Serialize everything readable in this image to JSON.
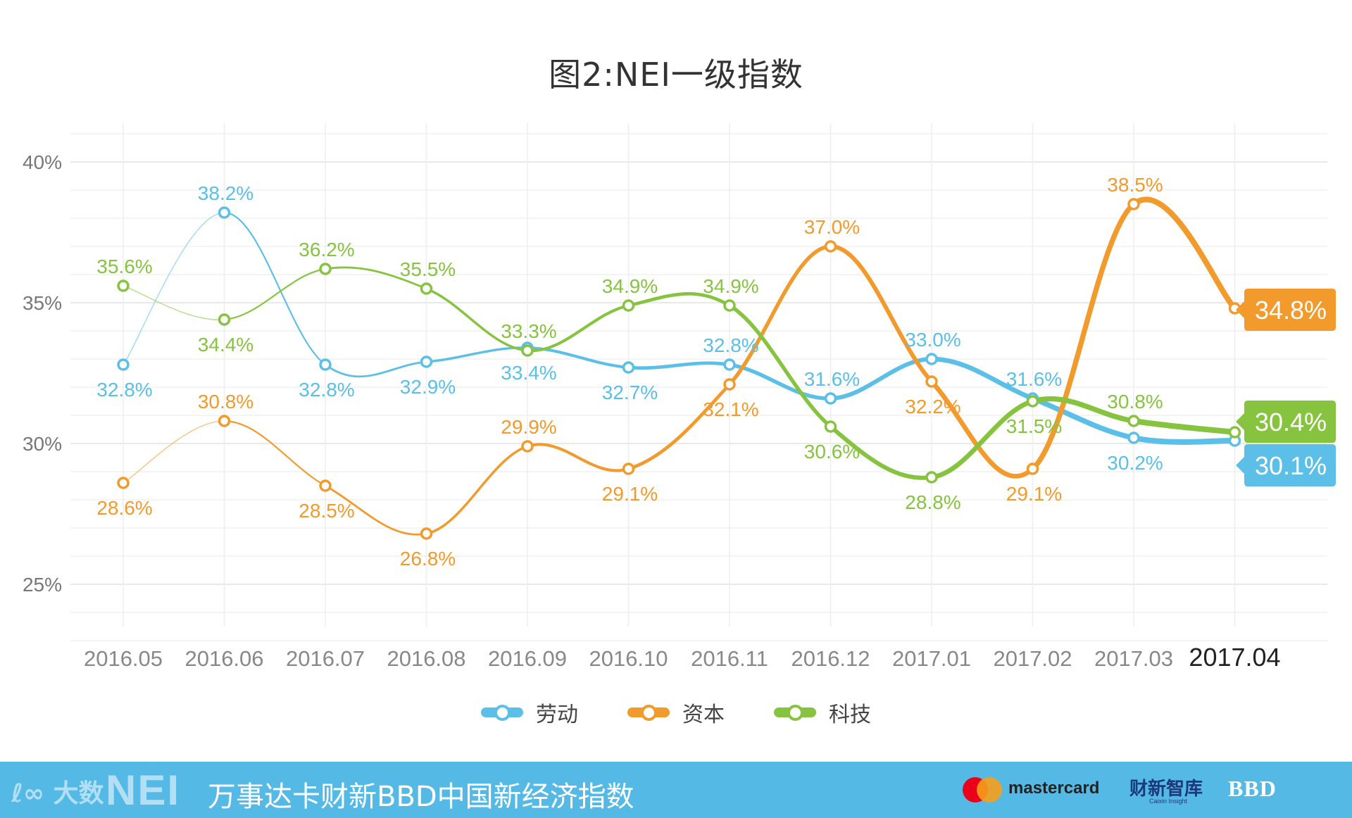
{
  "chart_data": {
    "type": "line",
    "title": "图2:NEI一级指数",
    "categories": [
      "2016.05",
      "2016.06",
      "2016.07",
      "2016.08",
      "2016.09",
      "2016.10",
      "2016.11",
      "2016.12",
      "2017.01",
      "2017.02",
      "2017.03",
      "2017.04"
    ],
    "ylim": [
      23,
      41
    ],
    "yticks": [
      25,
      30,
      35,
      40
    ],
    "ytick_labels": [
      "25%",
      "30%",
      "35%",
      "40%"
    ],
    "xlabel": "",
    "ylabel": "",
    "grid": true,
    "legend_position": "bottom-center",
    "series": [
      {
        "name": "劳动",
        "color": "#5bbfe8",
        "values": [
          32.8,
          38.2,
          32.8,
          32.9,
          33.4,
          32.7,
          32.8,
          31.6,
          33.0,
          31.6,
          30.2,
          30.1
        ],
        "labels": [
          "32.8%",
          "38.2%",
          "32.8%",
          "32.9%",
          "33.4%",
          "32.7%",
          "32.8%",
          "31.6%",
          "33.0%",
          "31.6%",
          "30.2%",
          "30.1%"
        ]
      },
      {
        "name": "资本",
        "color": "#f39a2c",
        "values": [
          28.6,
          30.8,
          28.5,
          26.8,
          29.9,
          29.1,
          32.1,
          37.0,
          32.2,
          29.1,
          38.5,
          34.8
        ],
        "labels": [
          "28.6%",
          "30.8%",
          "28.5%",
          "26.8%",
          "29.9%",
          "29.1%",
          "32.1%",
          "37.0%",
          "32.2%",
          "29.1%",
          "38.5%",
          "34.8%"
        ]
      },
      {
        "name": "科技",
        "color": "#86c440",
        "values": [
          35.6,
          34.4,
          36.2,
          35.5,
          33.3,
          34.9,
          34.9,
          30.6,
          28.8,
          31.5,
          30.8,
          30.4
        ],
        "labels": [
          "35.6%",
          "34.4%",
          "36.2%",
          "35.5%",
          "33.3%",
          "34.9%",
          "34.9%",
          "30.6%",
          "28.8%",
          "31.5%",
          "30.8%",
          "30.4%"
        ]
      }
    ],
    "label_above": [
      [
        false,
        true,
        false,
        false,
        false,
        false,
        true,
        true,
        true,
        true,
        false,
        false
      ],
      [
        false,
        true,
        false,
        false,
        true,
        false,
        false,
        true,
        false,
        false,
        true,
        false
      ],
      [
        true,
        false,
        true,
        true,
        true,
        true,
        true,
        false,
        false,
        false,
        true,
        false
      ]
    ]
  },
  "legend": [
    {
      "name": "劳动",
      "color": "#5bbfe8"
    },
    {
      "name": "资本",
      "color": "#f39a2c"
    },
    {
      "name": "科技",
      "color": "#86c440"
    }
  ],
  "footer": {
    "brand_a": "ℓ∞ 大数",
    "brand_b": "NEI",
    "title": "万事达卡财新BBD中国新经济指数",
    "mastercard": "mastercard",
    "caixin": "财新智库",
    "caixin_sub": "Caixin Insight",
    "bbd": "BBD",
    "bg_color": "#55b9e6"
  }
}
